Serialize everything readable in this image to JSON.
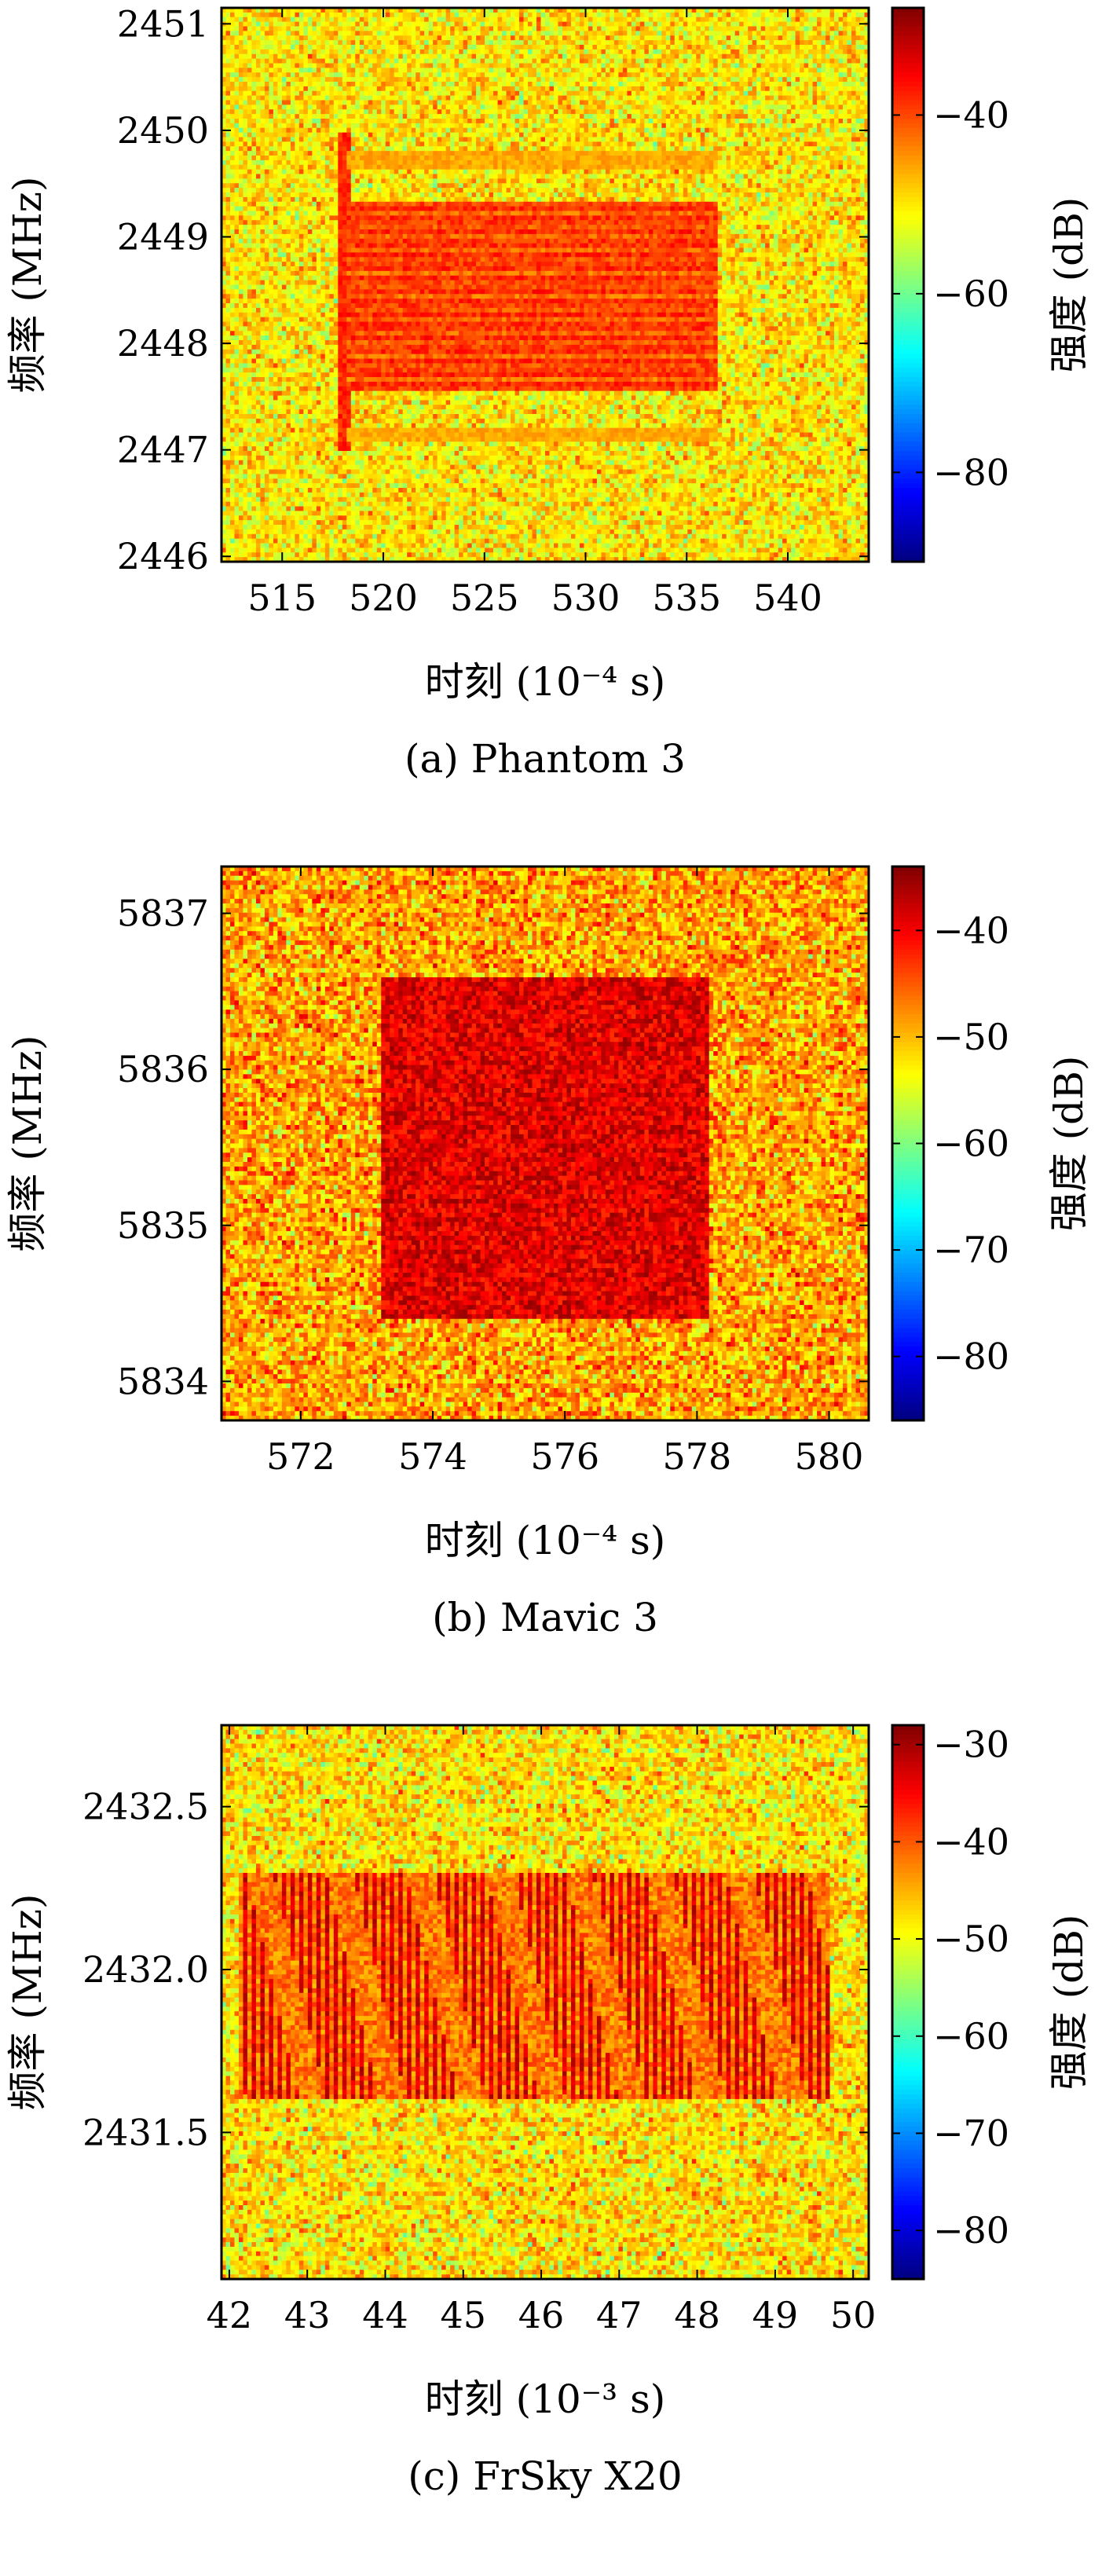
{
  "chart_data": [
    {
      "type": "heatmap",
      "caption": "(a) Phantom 3",
      "xlabel": "时刻 (10⁻⁴ s)",
      "ylabel": "频率 (MHz)",
      "colorbar_label": "强度 (dB)",
      "colormap": "jet",
      "xlim": [
        512,
        544
      ],
      "ylim": [
        2445.95,
        2451.15
      ],
      "xticks": [
        515,
        520,
        525,
        530,
        535,
        540
      ],
      "yticks": [
        2446,
        2447,
        2448,
        2449,
        2450,
        2451
      ],
      "clim": [
        -90,
        -28
      ],
      "cticks": [
        -40,
        -60,
        -80
      ],
      "background_db": -50,
      "signal": {
        "kind": "striped-burst",
        "x_range": [
          518.1,
          536.5
        ],
        "y_range": [
          2447.55,
          2449.35
        ],
        "peak_db": -38,
        "spike_x": 518.1,
        "spike_y_range": [
          2447.0,
          2450.0
        ],
        "sideband_y": [
          2449.72,
          2447.15
        ],
        "sideband_db": -46
      }
    },
    {
      "type": "heatmap",
      "caption": "(b) Mavic 3",
      "xlabel": "时刻 (10⁻⁴ s)",
      "ylabel": "频率 (MHz)",
      "colorbar_label": "强度 (dB)",
      "colormap": "jet",
      "xlim": [
        570.8,
        580.6
      ],
      "ylim": [
        5833.75,
        5837.3
      ],
      "xticks": [
        572,
        574,
        576,
        578,
        580
      ],
      "yticks": [
        5834,
        5835,
        5836,
        5837
      ],
      "clim": [
        -86,
        -34
      ],
      "cticks": [
        -40,
        -50,
        -60,
        -70,
        -80
      ],
      "background_db": -49,
      "signal": {
        "kind": "block",
        "x_range": [
          573.25,
          578.2
        ],
        "y_range": [
          5834.4,
          5836.6
        ],
        "peak_db": -39
      }
    },
    {
      "type": "heatmap",
      "caption": "(c) FrSky X20",
      "xlabel": "时刻 (10⁻³ s)",
      "ylabel": "频率 (MHz)",
      "colorbar_label": "强度 (dB)",
      "colormap": "jet",
      "xlim": [
        41.9,
        50.2
      ],
      "ylim": [
        2431.05,
        2432.75
      ],
      "xticks": [
        42,
        43,
        44,
        45,
        46,
        47,
        48,
        49,
        50
      ],
      "xtick_labels": [
        "42",
        "43",
        "44",
        "45",
        "46",
        "47",
        "48",
        "49",
        "50"
      ],
      "yticks": [
        2431.5,
        2432.0,
        2432.5
      ],
      "ytick_labels": [
        "2431.5",
        "2432.0",
        "2432.5"
      ],
      "clim": [
        -85,
        -28
      ],
      "cticks": [
        -30,
        -40,
        -50,
        -60,
        -70,
        -80
      ],
      "background_db": -48,
      "signal": {
        "kind": "chirps",
        "x_range": [
          42.1,
          49.7
        ],
        "y_range": [
          2431.6,
          2432.3
        ],
        "peak_db": -33
      }
    }
  ]
}
